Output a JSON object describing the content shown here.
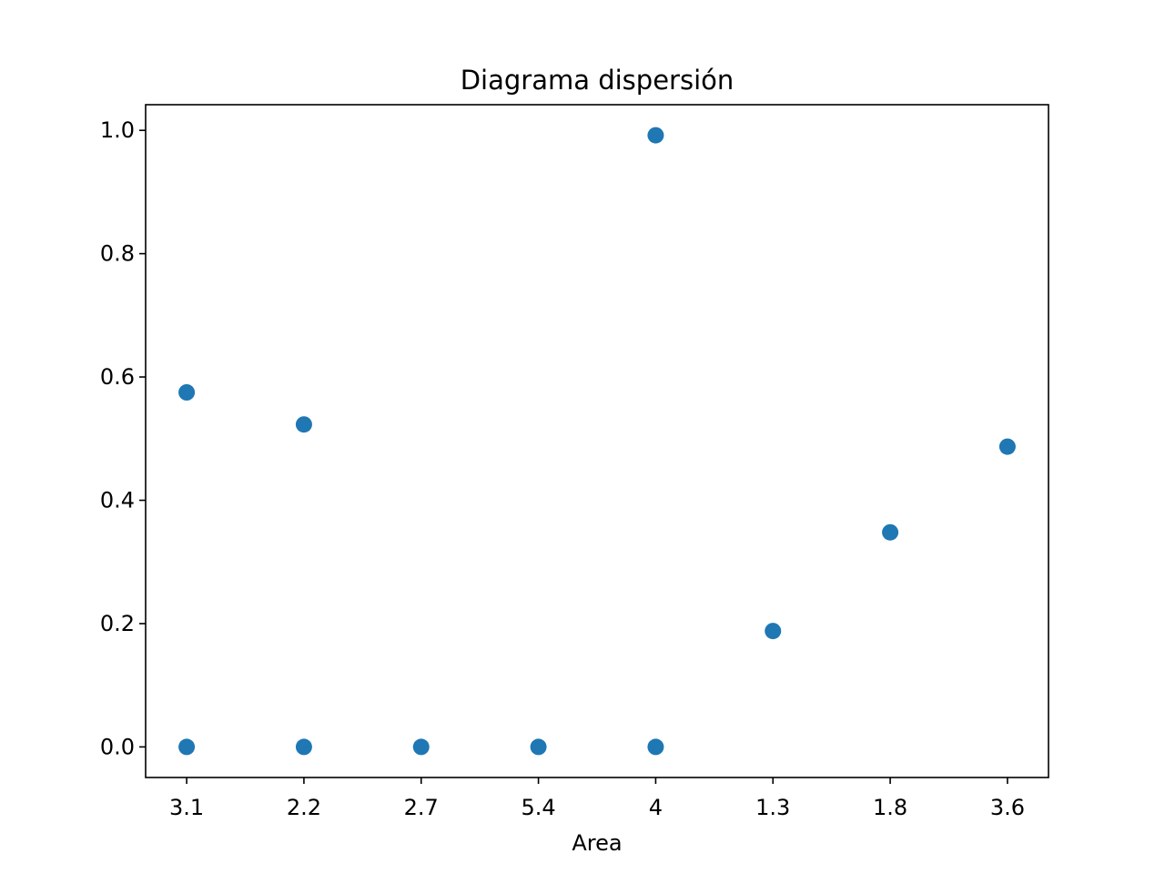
{
  "chart_data": {
    "type": "scatter",
    "title": "Diagrama dispersión",
    "xlabel": "Area",
    "ylabel": "",
    "categories": [
      "3.1",
      "2.2",
      "2.7",
      "5.4",
      "4",
      "1.3",
      "1.8",
      "3.6"
    ],
    "points": [
      {
        "x": "3.1",
        "y": 0.575
      },
      {
        "x": "3.1",
        "y": 0.0
      },
      {
        "x": "2.2",
        "y": 0.523
      },
      {
        "x": "2.2",
        "y": 0.0
      },
      {
        "x": "2.7",
        "y": 0.0
      },
      {
        "x": "5.4",
        "y": 0.0
      },
      {
        "x": "4",
        "y": 0.992
      },
      {
        "x": "4",
        "y": 0.0
      },
      {
        "x": "1.3",
        "y": 0.188
      },
      {
        "x": "1.8",
        "y": 0.348
      },
      {
        "x": "3.6",
        "y": 0.487
      }
    ],
    "yticks": [
      0.0,
      0.2,
      0.4,
      0.6,
      0.8,
      1.0
    ],
    "ytick_labels": [
      "0.0",
      "0.2",
      "0.4",
      "0.6",
      "0.8",
      "1.0"
    ],
    "ylim": [
      -0.0496,
      1.0416
    ],
    "grid": false,
    "marker_color": "#1f77b4"
  }
}
